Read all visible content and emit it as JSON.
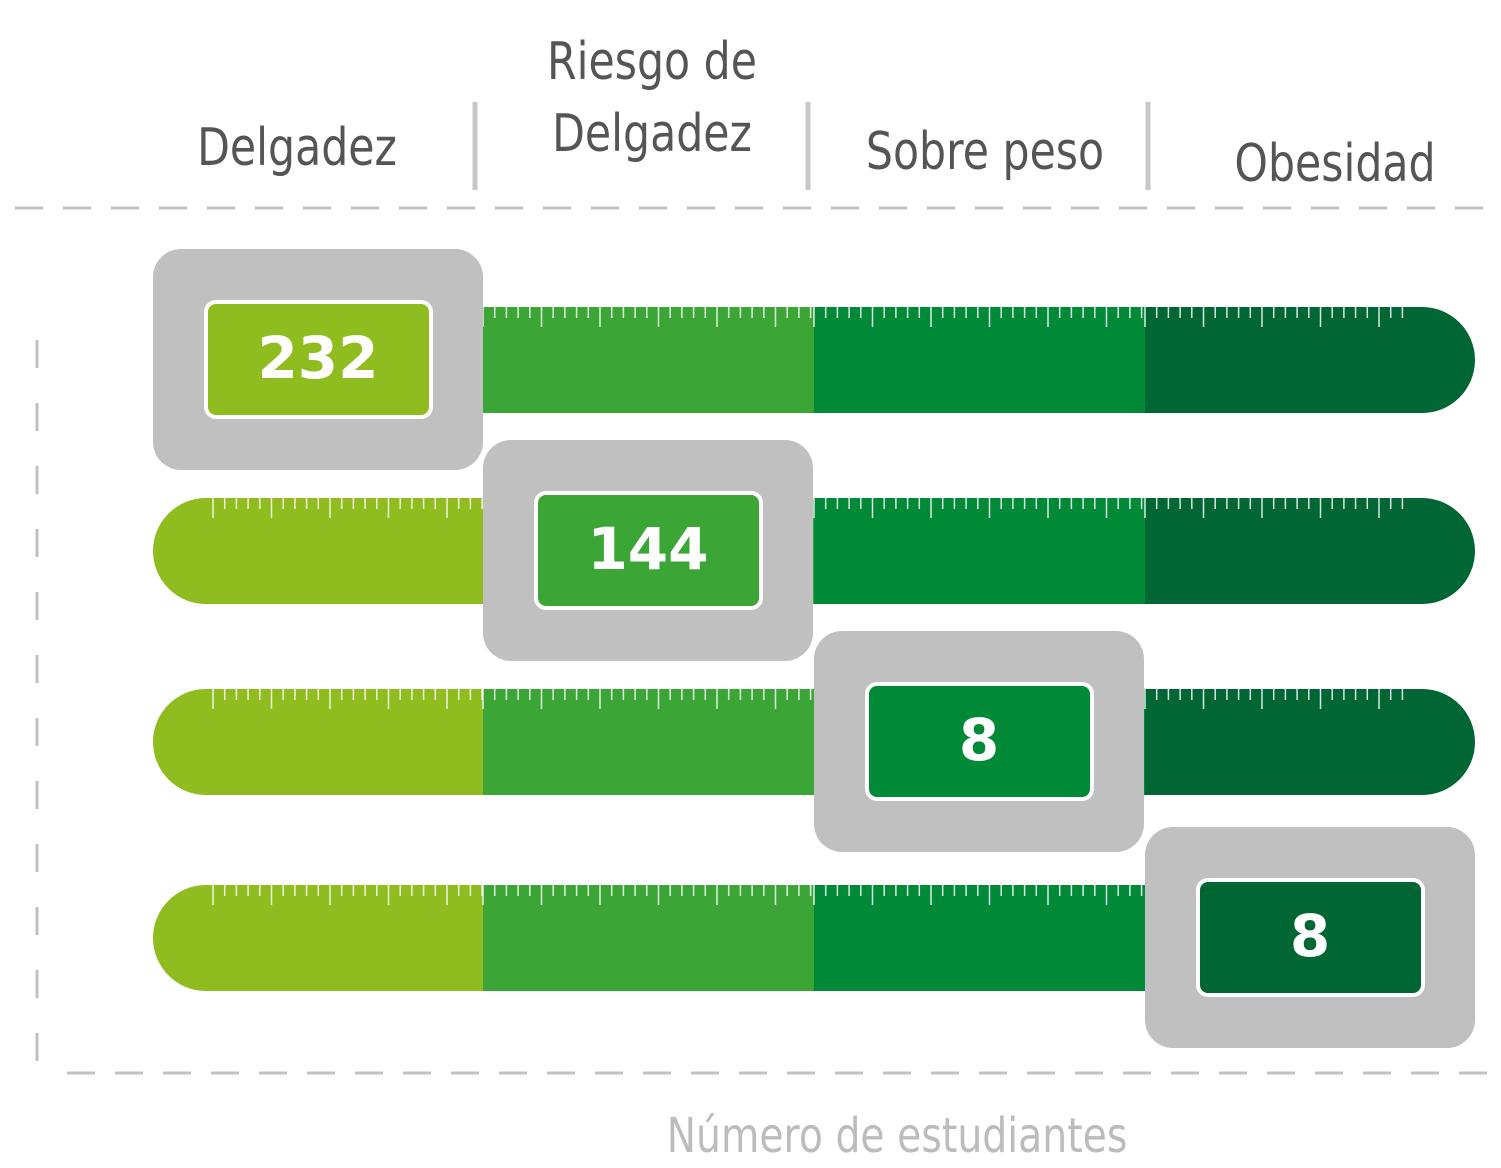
{
  "columns": [
    "Delgadez",
    "Riesgo de Delgadez",
    "Sobre peso",
    "Obesidad"
  ],
  "rows": [
    {
      "value": "232"
    },
    {
      "value": "144"
    },
    {
      "value": "8"
    },
    {
      "value": "8"
    }
  ],
  "axis_label": "Número de estudiantes"
}
